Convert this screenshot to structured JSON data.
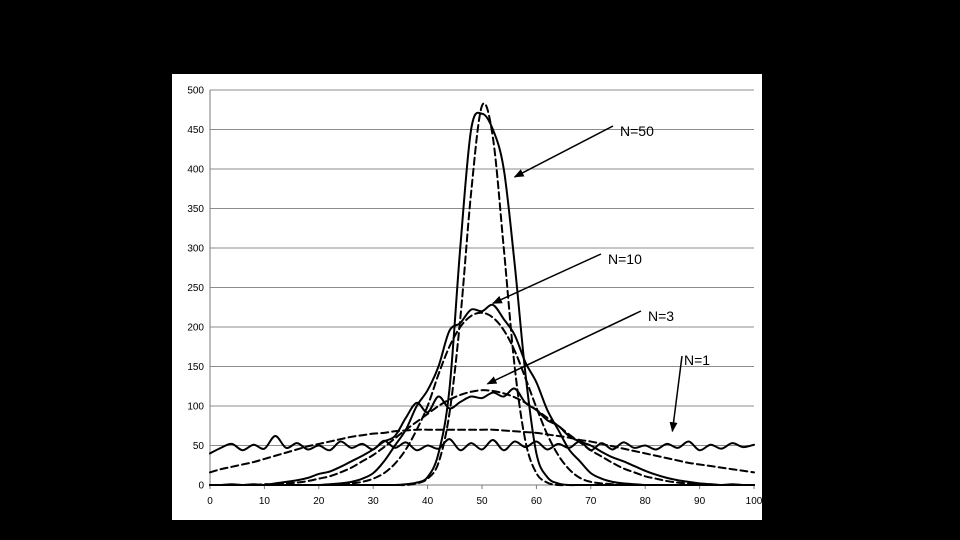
{
  "chart_data": {
    "type": "line",
    "title": "",
    "xlabel": "",
    "ylabel": "",
    "xlim": [
      0,
      100
    ],
    "ylim": [
      0,
      500
    ],
    "x_ticks": [
      "0",
      "10",
      "20",
      "30",
      "40",
      "50",
      "60",
      "70",
      "80",
      "90",
      "100"
    ],
    "y_ticks": [
      "0",
      "50",
      "100",
      "150",
      "200",
      "250",
      "300",
      "350",
      "400",
      "450",
      "500"
    ],
    "grid": "horizontal",
    "legend": "none",
    "x": [
      0,
      2,
      4,
      6,
      8,
      10,
      12,
      14,
      16,
      18,
      20,
      22,
      24,
      26,
      28,
      30,
      32,
      34,
      36,
      38,
      40,
      42,
      44,
      46,
      48,
      50,
      52,
      54,
      56,
      58,
      60,
      62,
      64,
      66,
      68,
      70,
      72,
      74,
      76,
      78,
      80,
      82,
      84,
      86,
      88,
      90,
      92,
      94,
      96,
      98,
      100
    ],
    "series": [
      {
        "style": "solid",
        "values": [
          40,
          47,
          52,
          44,
          51,
          46,
          62,
          47,
          53,
          45,
          50,
          44,
          55,
          47,
          52,
          45,
          56,
          47,
          54,
          44,
          50,
          46,
          58,
          44,
          53,
          45,
          57,
          44,
          55,
          48,
          55,
          45,
          52,
          47,
          55,
          44,
          53,
          45,
          54,
          47,
          50,
          45,
          52,
          47,
          55,
          44,
          51,
          46,
          53,
          48,
          51
        ]
      },
      {
        "style": "dashed",
        "values": [
          16,
          20,
          23,
          26,
          29,
          33,
          37,
          41,
          45,
          49,
          52,
          55,
          58,
          61,
          63,
          65,
          66,
          68,
          69,
          70,
          70,
          70,
          70,
          70,
          70,
          70,
          70,
          69,
          68,
          67,
          66,
          64,
          62,
          60,
          57,
          55,
          52,
          49,
          46,
          43,
          40,
          37,
          34,
          31,
          28,
          26,
          24,
          22,
          20,
          18,
          16
        ]
      },
      {
        "style": "solid",
        "values": [
          0,
          0,
          1,
          0,
          1,
          0,
          2,
          4,
          6,
          9,
          14,
          17,
          23,
          30,
          37,
          45,
          55,
          62,
          85,
          104,
          92,
          112,
          97,
          105,
          112,
          110,
          117,
          112,
          122,
          104,
          95,
          82,
          75,
          62,
          55,
          50,
          42,
          35,
          30,
          24,
          18,
          13,
          9,
          6,
          4,
          2,
          1,
          0,
          1,
          0,
          0
        ]
      },
      {
        "style": "dashed",
        "values": [
          0,
          0,
          0,
          0,
          0,
          1,
          1,
          2,
          3,
          5,
          8,
          11,
          16,
          22,
          30,
          38,
          48,
          59,
          70,
          80,
          90,
          100,
          108,
          114,
          118,
          120,
          119,
          116,
          111,
          104,
          95,
          85,
          75,
          64,
          54,
          44,
          36,
          28,
          21,
          16,
          11,
          8,
          5,
          3,
          2,
          1,
          1,
          0,
          0,
          0,
          0
        ]
      },
      {
        "style": "solid",
        "values": [
          0,
          0,
          0,
          0,
          0,
          0,
          0,
          0,
          0,
          0,
          0,
          1,
          2,
          4,
          8,
          15,
          30,
          50,
          70,
          100,
          120,
          150,
          195,
          205,
          222,
          220,
          228,
          210,
          190,
          155,
          130,
          95,
          70,
          45,
          30,
          15,
          8,
          4,
          2,
          1,
          0,
          0,
          0,
          0,
          0,
          0,
          0,
          0,
          0,
          0,
          0
        ]
      },
      {
        "style": "dashed",
        "values": [
          0,
          0,
          0,
          0,
          0,
          0,
          0,
          0,
          0,
          0,
          0,
          0,
          1,
          2,
          4,
          8,
          15,
          27,
          45,
          70,
          100,
          140,
          175,
          200,
          214,
          218,
          212,
          196,
          170,
          135,
          98,
          64,
          38,
          20,
          9,
          4,
          2,
          1,
          0,
          0,
          0,
          0,
          0,
          0,
          0,
          0,
          0,
          0,
          0,
          0,
          0
        ]
      },
      {
        "style": "solid",
        "values": [
          0,
          0,
          0,
          0,
          0,
          0,
          0,
          0,
          0,
          0,
          0,
          0,
          0,
          0,
          0,
          0,
          0,
          0,
          1,
          3,
          10,
          40,
          120,
          300,
          450,
          470,
          450,
          400,
          280,
          140,
          40,
          10,
          2,
          0,
          0,
          0,
          0,
          0,
          0,
          0,
          0,
          0,
          0,
          0,
          0,
          0,
          0,
          0,
          0,
          0,
          0
        ]
      },
      {
        "style": "dashed",
        "values": [
          0,
          0,
          0,
          0,
          0,
          0,
          0,
          0,
          0,
          0,
          0,
          0,
          0,
          0,
          0,
          0,
          0,
          0,
          0,
          2,
          8,
          28,
          90,
          210,
          370,
          480,
          440,
          300,
          150,
          55,
          15,
          3,
          0,
          0,
          0,
          0,
          0,
          0,
          0,
          0,
          0,
          0,
          0,
          0,
          0,
          0,
          0,
          0,
          0,
          0,
          0
        ]
      }
    ],
    "annotations": [
      {
        "text": "N=50",
        "points_to": [
          56,
          390
        ]
      },
      {
        "text": "N=10",
        "points_to": [
          52,
          230
        ]
      },
      {
        "text": "N=3",
        "points_to": [
          51,
          128
        ]
      },
      {
        "text": "N=1",
        "points_to": [
          85,
          68
        ]
      }
    ]
  }
}
